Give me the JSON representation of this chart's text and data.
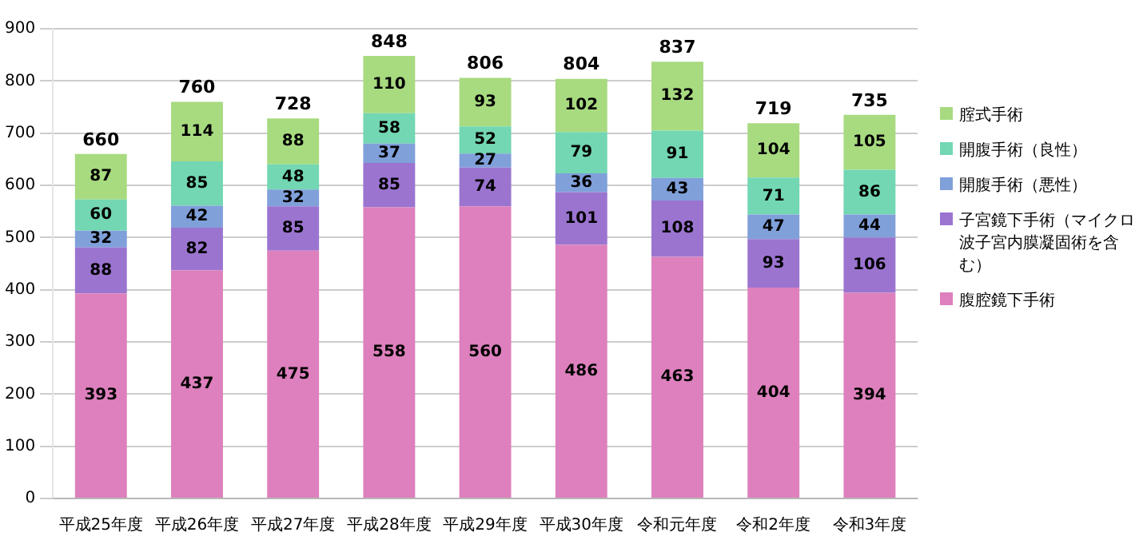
{
  "chart_data": {
    "type": "bar",
    "stacked": true,
    "categories": [
      "平成25年度",
      "平成26年度",
      "平成27年度",
      "平成28年度",
      "平成29年度",
      "平成30年度",
      "令和元年度",
      "令和2年度",
      "令和3年度"
    ],
    "series": [
      {
        "name": "腹腔鏡下手術",
        "color": "#dd80bd",
        "values": [
          393,
          437,
          475,
          558,
          560,
          486,
          463,
          404,
          394
        ]
      },
      {
        "name": "子宮鏡下手術（マイクロ波子宮内膜凝固術を含む）",
        "color": "#9b74d0",
        "values": [
          88,
          82,
          85,
          85,
          74,
          101,
          108,
          93,
          106
        ]
      },
      {
        "name": "開腹手術（悪性）",
        "color": "#80a0da",
        "values": [
          32,
          42,
          32,
          37,
          27,
          36,
          43,
          47,
          44
        ]
      },
      {
        "name": "開腹手術（良性）",
        "color": "#72d7b2",
        "values": [
          60,
          85,
          48,
          58,
          52,
          79,
          91,
          71,
          86
        ]
      },
      {
        "name": "腟式手術",
        "color": "#a8da80",
        "values": [
          87,
          114,
          88,
          110,
          93,
          102,
          132,
          104,
          105
        ]
      }
    ],
    "totals": [
      "660",
      "760",
      "728",
      "848",
      "806",
      "804",
      "837",
      "719",
      "735"
    ],
    "ylim": [
      0,
      900
    ],
    "yticks": [
      0,
      100,
      200,
      300,
      400,
      500,
      600,
      700,
      800,
      900
    ],
    "grid": "y",
    "legend": "right",
    "data_labels": true
  }
}
